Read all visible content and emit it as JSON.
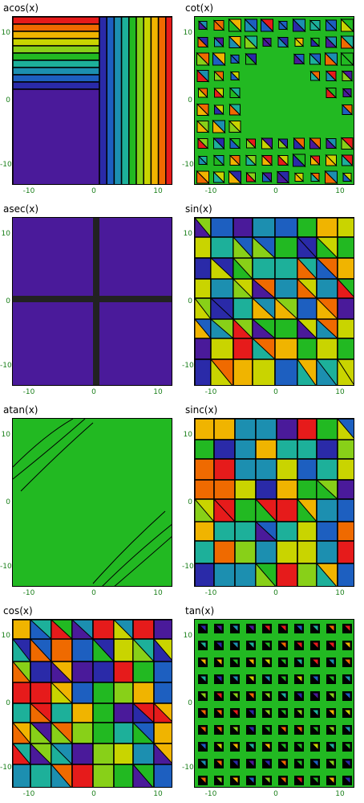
{
  "palette": [
    "#4a1a9a",
    "#2a2aa8",
    "#1d5fc0",
    "#1c8fb0",
    "#1db09a",
    "#22b922",
    "#88d018",
    "#c9d400",
    "#f0b400",
    "#ef6a00",
    "#e61b1b"
  ],
  "chart_data": [
    {
      "id": "acos",
      "type": "heatmap",
      "title": "acos(x)",
      "xlim": [
        -13,
        13
      ],
      "ylim": [
        -13,
        13
      ],
      "xticks": [
        "-10",
        "0",
        "10"
      ],
      "yticks": [
        "10",
        "0",
        "-10"
      ],
      "xtick_values": [
        -10,
        0,
        10
      ],
      "ytick_values": [
        10,
        0,
        -10
      ],
      "pattern": "acos"
    },
    {
      "id": "cot",
      "type": "heatmap",
      "title": "cot(x)",
      "xlim": [
        -13,
        13
      ],
      "ylim": [
        -13,
        13
      ],
      "xticks": [
        "-10",
        "0",
        "10"
      ],
      "yticks": [
        "10",
        "0",
        "-10"
      ],
      "xtick_values": [
        -10,
        0,
        10
      ],
      "ytick_values": [
        10,
        0,
        -10
      ],
      "pattern": "cot"
    },
    {
      "id": "asec",
      "type": "heatmap",
      "title": "asec(x)",
      "xlim": [
        -13,
        13
      ],
      "ylim": [
        -13,
        13
      ],
      "xticks": [
        "-10",
        "0",
        "10"
      ],
      "yticks": [
        "10",
        "0",
        "-10"
      ],
      "xtick_values": [
        -10,
        0,
        10
      ],
      "ytick_values": [
        10,
        0,
        -10
      ],
      "pattern": "asec"
    },
    {
      "id": "sin",
      "type": "heatmap",
      "title": "sin(x)",
      "xlim": [
        -13,
        13
      ],
      "ylim": [
        -13,
        13
      ],
      "xticks": [
        "-10",
        "0",
        "10"
      ],
      "yticks": [
        "10",
        "0",
        "-10"
      ],
      "xtick_values": [
        -10,
        0,
        10
      ],
      "ytick_values": [
        10,
        0,
        -10
      ],
      "pattern": "sin"
    },
    {
      "id": "atan",
      "type": "heatmap",
      "title": "atan(x)",
      "xlim": [
        -13,
        13
      ],
      "ylim": [
        -13,
        13
      ],
      "xticks": [
        "-10",
        "0",
        "10"
      ],
      "yticks": [
        "10",
        "0",
        "-10"
      ],
      "xtick_values": [
        -10,
        0,
        10
      ],
      "ytick_values": [
        10,
        0,
        -10
      ],
      "pattern": "atan"
    },
    {
      "id": "sinc",
      "type": "heatmap",
      "title": "sinc(x)",
      "xlim": [
        -13,
        13
      ],
      "ylim": [
        -13,
        13
      ],
      "xticks": [
        "-10",
        "0",
        "10"
      ],
      "yticks": [
        "10",
        "0",
        "-10"
      ],
      "xtick_values": [
        -10,
        0,
        10
      ],
      "ytick_values": [
        10,
        0,
        -10
      ],
      "pattern": "sinc"
    },
    {
      "id": "cos",
      "type": "heatmap",
      "title": "cos(x)",
      "xlim": [
        -13,
        13
      ],
      "ylim": [
        -13,
        13
      ],
      "xticks": [
        "-10",
        "0",
        "10"
      ],
      "yticks": [
        "10",
        "0",
        "-10"
      ],
      "xtick_values": [
        -10,
        0,
        10
      ],
      "ytick_values": [
        10,
        0,
        -10
      ],
      "pattern": "cos"
    },
    {
      "id": "tan",
      "type": "heatmap",
      "title": "tan(x)",
      "xlim": [
        -13,
        13
      ],
      "ylim": [
        -13,
        13
      ],
      "xticks": [
        "-10",
        "0",
        "10"
      ],
      "yticks": [
        "10",
        "0",
        "-10"
      ],
      "xtick_values": [
        -10,
        0,
        10
      ],
      "ytick_values": [
        10,
        0,
        -10
      ],
      "pattern": "tan"
    }
  ]
}
